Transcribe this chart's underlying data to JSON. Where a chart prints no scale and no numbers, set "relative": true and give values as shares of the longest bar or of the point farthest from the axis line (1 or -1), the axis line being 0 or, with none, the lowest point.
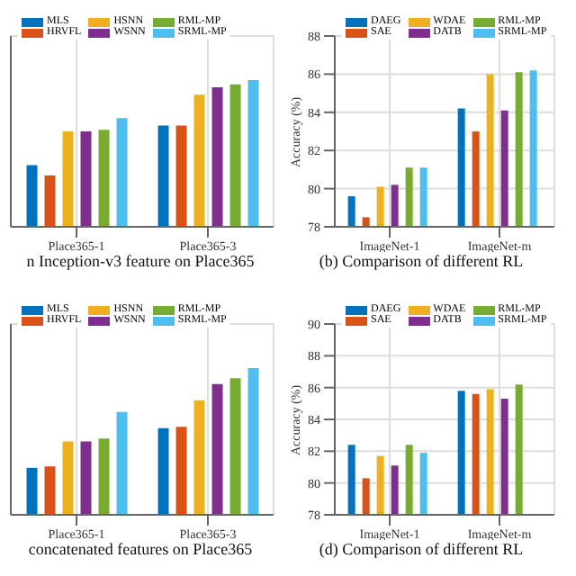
{
  "chart_data": [
    {
      "type": "bar",
      "title": "n Inception-v3 feature on Place365",
      "categories": [
        "Place365-1",
        "Place365-3"
      ],
      "relative": true,
      "tick_labels": "x",
      "grid": true,
      "legend": "top",
      "series": [
        {
          "name": "MLS",
          "color": "#0072bd",
          "values": [
            0.42,
            0.69
          ]
        },
        {
          "name": "HRVFL",
          "color": "#d95319",
          "values": [
            0.35,
            0.69
          ]
        },
        {
          "name": "HSNN",
          "color": "#edb120",
          "values": [
            0.65,
            0.9
          ]
        },
        {
          "name": "WSNN",
          "color": "#7e2f8e",
          "values": [
            0.65,
            0.95
          ]
        },
        {
          "name": "RML-MP",
          "color": "#77ac30",
          "values": [
            0.66,
            0.97
          ]
        },
        {
          "name": "SRML-MP",
          "color": "#4dbeee",
          "values": [
            0.74,
            1
          ]
        }
      ]
    },
    {
      "type": "bar",
      "title": "(b) Comparison of different RL",
      "ylabel": "Accuracy (%)",
      "categories": [
        "ImageNet-1",
        "ImageNet-m"
      ],
      "ylim": [
        78,
        88
      ],
      "yticks": [
        78,
        80,
        82,
        84,
        86,
        88
      ],
      "grid": true,
      "legend": "top",
      "series": [
        {
          "name": "DAEG",
          "color": "#0072bd",
          "values": [
            79.6,
            84.2
          ]
        },
        {
          "name": "SAE",
          "color": "#d95319",
          "values": [
            78.5,
            83
          ]
        },
        {
          "name": "WDAE",
          "color": "#edb120",
          "values": [
            80.1,
            86
          ]
        },
        {
          "name": "DATB",
          "color": "#7e2f8e",
          "values": [
            80.2,
            84.1
          ]
        },
        {
          "name": "RML-MP",
          "color": "#77ac30",
          "values": [
            81.1,
            86.1
          ]
        },
        {
          "name": "SRML-MP",
          "color": "#4dbeee",
          "values": [
            81.1,
            86.2
          ]
        }
      ]
    },
    {
      "type": "bar",
      "title": "concatenated features on Place365",
      "categories": [
        "Place365-1",
        "Place365-3"
      ],
      "relative": true,
      "tick_labels": "x",
      "grid": true,
      "legend": "top",
      "series": [
        {
          "name": "MLS",
          "color": "#0072bd",
          "values": [
            0.32,
            0.59
          ]
        },
        {
          "name": "HRVFL",
          "color": "#d95319",
          "values": [
            0.33,
            0.6
          ]
        },
        {
          "name": "HSNN",
          "color": "#edb120",
          "values": [
            0.5,
            0.78
          ]
        },
        {
          "name": "WSNN",
          "color": "#7e2f8e",
          "values": [
            0.5,
            0.89
          ]
        },
        {
          "name": "RML-MP",
          "color": "#77ac30",
          "values": [
            0.52,
            0.93
          ]
        },
        {
          "name": "SRML-MP",
          "color": "#4dbeee",
          "values": [
            0.7,
            1
          ]
        }
      ]
    },
    {
      "type": "bar",
      "title": "(d) Comparison of different RL",
      "ylabel": "Accuracy (%)",
      "categories": [
        "ImageNet-1",
        "ImageNet-m"
      ],
      "ylim": [
        78,
        90
      ],
      "yticks": [
        78,
        80,
        82,
        84,
        86,
        88,
        90
      ],
      "grid": true,
      "legend": "top",
      "series": [
        {
          "name": "DAEG",
          "color": "#0072bd",
          "values": [
            82.4,
            85.8
          ]
        },
        {
          "name": "SAE",
          "color": "#d95319",
          "values": [
            80.3,
            85.6
          ]
        },
        {
          "name": "WDAE",
          "color": "#edb120",
          "values": [
            81.7,
            85.9
          ]
        },
        {
          "name": "DATB",
          "color": "#7e2f8e",
          "values": [
            81.1,
            85.3
          ]
        },
        {
          "name": "RML-MP",
          "color": "#77ac30",
          "values": [
            82.4,
            86.2
          ]
        },
        {
          "name": "SRML-MP",
          "color": "#4dbeee",
          "values": [
            81.9,
            null
          ]
        }
      ]
    }
  ]
}
